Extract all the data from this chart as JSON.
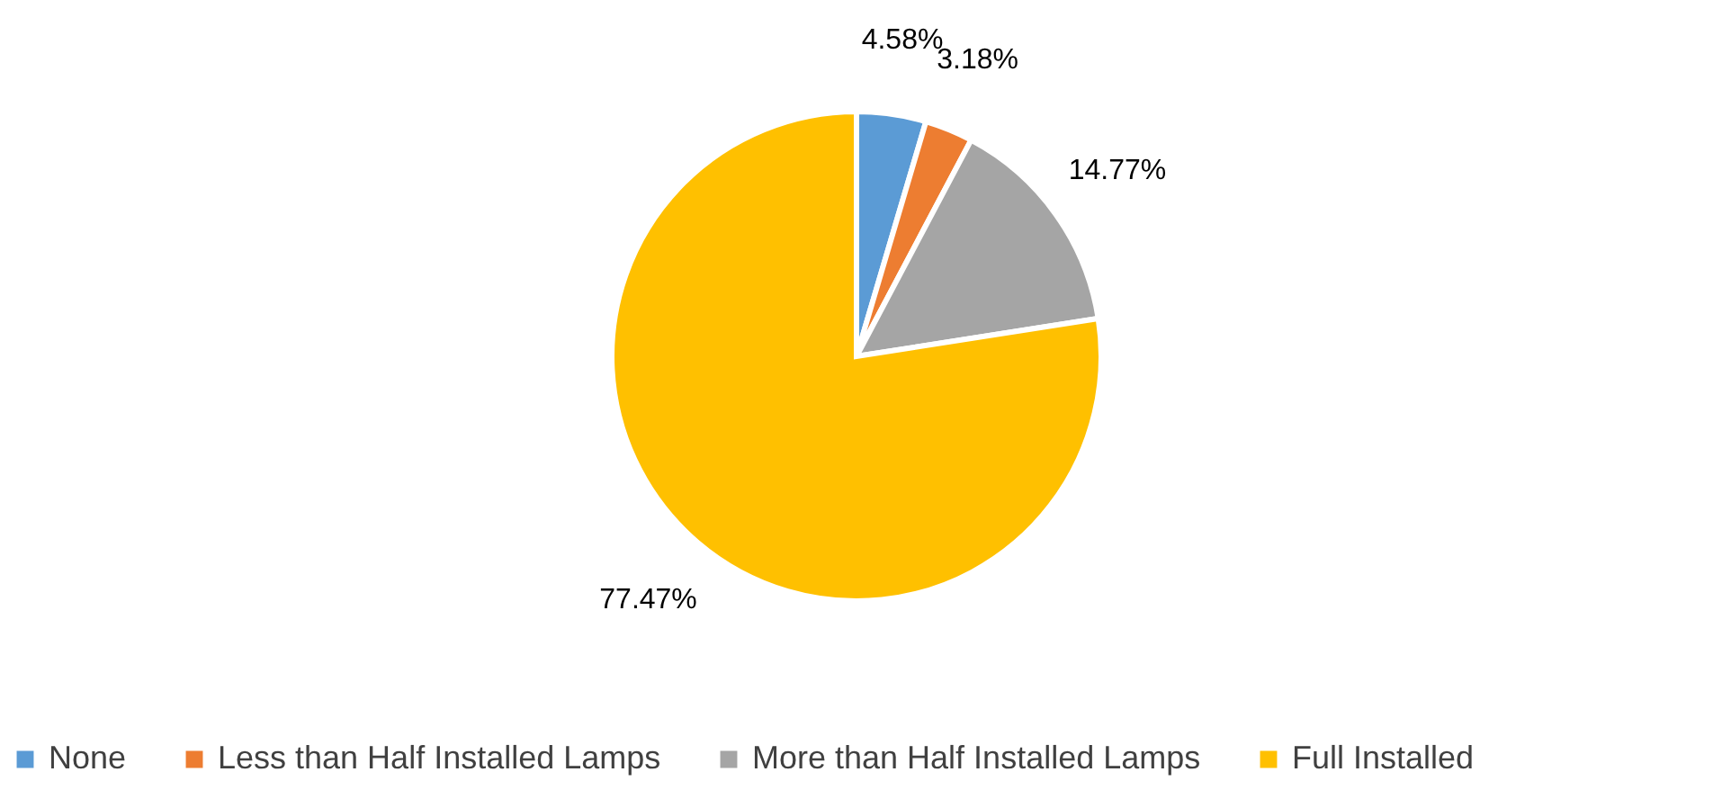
{
  "chart_data": {
    "type": "pie",
    "categories": [
      "None",
      "Less than Half Installed Lamps",
      "More than Half Installed Lamps",
      "Full Installed"
    ],
    "values": [
      4.58,
      3.18,
      14.77,
      77.47
    ],
    "colors": [
      "#5b9bd5",
      "#ed7d31",
      "#a5a5a5",
      "#ffc000"
    ],
    "value_labels": [
      "4.58%",
      "3.18%",
      "14.77%",
      "77.47%"
    ],
    "legend": "bottom"
  }
}
